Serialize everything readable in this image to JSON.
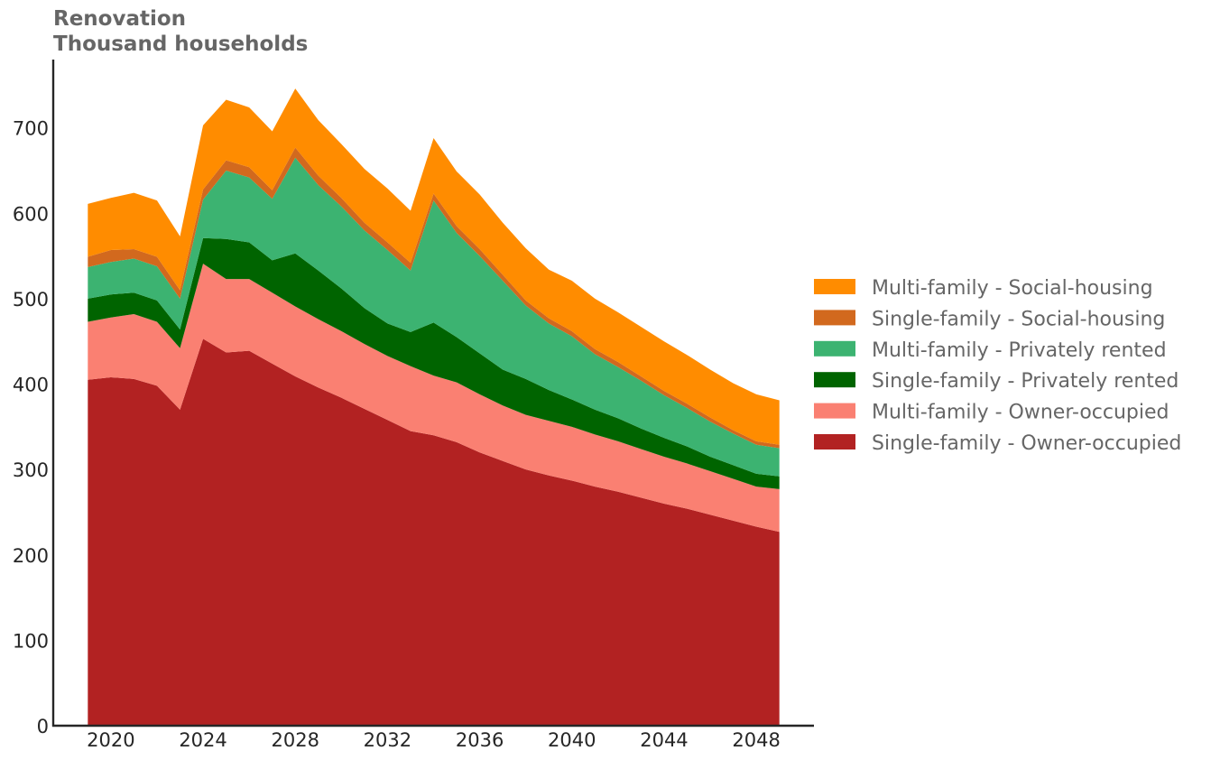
{
  "chart_data": {
    "type": "area",
    "stacked": true,
    "title": "Renovation",
    "subtitle": "Thousand households",
    "x": [
      2019,
      2020,
      2021,
      2022,
      2023,
      2024,
      2025,
      2026,
      2027,
      2028,
      2029,
      2030,
      2031,
      2032,
      2033,
      2034,
      2035,
      2036,
      2037,
      2038,
      2039,
      2040,
      2041,
      2042,
      2043,
      2044,
      2045,
      2046,
      2047,
      2048,
      2049
    ],
    "xticks": [
      2020,
      2024,
      2028,
      2032,
      2036,
      2040,
      2044,
      2048
    ],
    "xlim": [
      2017.5,
      2050.5
    ],
    "ylim": [
      0,
      780
    ],
    "yticks": [
      0,
      100,
      200,
      300,
      400,
      500,
      600,
      700
    ],
    "grid": false,
    "legend_position": "right",
    "series": [
      {
        "name": "Single-family - Owner-occupied",
        "color": "#B22222",
        "values": [
          405,
          408,
          406,
          398,
          370,
          453,
          437,
          439,
          424,
          409,
          396,
          384,
          371,
          358,
          345,
          340,
          332,
          320,
          310,
          300,
          293,
          287,
          280,
          274,
          267,
          260,
          254,
          247,
          240,
          233,
          227
        ]
      },
      {
        "name": "Multi-family - Owner-occupied",
        "color": "#FA8072",
        "values": [
          68,
          70,
          76,
          75,
          72,
          88,
          86,
          84,
          83,
          82,
          80,
          78,
          76,
          75,
          76,
          70,
          70,
          68,
          65,
          64,
          64,
          63,
          61,
          59,
          57,
          55,
          53,
          51,
          49,
          47,
          50
        ]
      },
      {
        "name": "Single-family - Privately rented",
        "color": "#006400",
        "values": [
          27,
          27,
          25,
          25,
          22,
          30,
          47,
          43,
          38,
          62,
          57,
          50,
          42,
          38,
          40,
          62,
          53,
          48,
          42,
          42,
          36,
          32,
          29,
          27,
          24,
          22,
          20,
          17,
          16,
          15,
          15
        ]
      },
      {
        "name": "Multi-family - Privately rented",
        "color": "#3CB371",
        "values": [
          37,
          38,
          40,
          40,
          36,
          45,
          80,
          76,
          72,
          112,
          100,
          96,
          91,
          86,
          72,
          143,
          122,
          114,
          104,
          86,
          78,
          74,
          65,
          60,
          56,
          50,
          45,
          41,
          37,
          34,
          33
        ]
      },
      {
        "name": "Single-family - Social-housing",
        "color": "#D2691E",
        "values": [
          12,
          14,
          11,
          11,
          10,
          12,
          12,
          12,
          10,
          12,
          11,
          10,
          9,
          9,
          9,
          8,
          8,
          8,
          7,
          6,
          6,
          6,
          6,
          6,
          5,
          5,
          5,
          5,
          4,
          4,
          4
        ]
      },
      {
        "name": "Multi-family - Social-housing",
        "color": "#FF8C00",
        "values": [
          62,
          61,
          66,
          66,
          63,
          75,
          71,
          70,
          69,
          69,
          65,
          63,
          63,
          63,
          61,
          65,
          64,
          64,
          61,
          61,
          57,
          59,
          59,
          58,
          58,
          58,
          57,
          56,
          55,
          55,
          52
        ]
      }
    ]
  }
}
